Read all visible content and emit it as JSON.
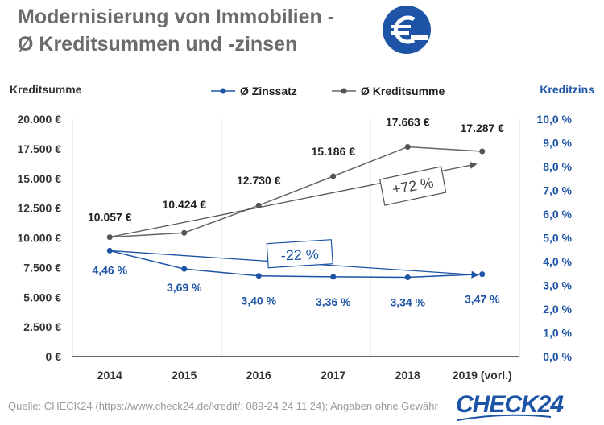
{
  "header": {
    "title_line1": "Modernisierung von Immobilien -",
    "title_line2": "Ø Kreditsummen und -zinsen",
    "logo_icon": "euro-icon",
    "accent_color": "#1d54a5"
  },
  "footer": {
    "source": "Quelle: CHECK24 (https://www.check24.de/kredit/; 089-24 24 11 24); Angaben ohne Gewähr",
    "brand": "CHECK24"
  },
  "chart_data": {
    "type": "line",
    "categories": [
      "2014",
      "2015",
      "2016",
      "2017",
      "2018",
      "2019 (vorl.)"
    ],
    "y_left": {
      "label": "Kreditsumme",
      "range": [
        0,
        20000
      ],
      "ticks": [
        "0 €",
        "2.500 €",
        "5.000 €",
        "7.500 €",
        "10.000 €",
        "12.500 €",
        "15.000 €",
        "17.500 €",
        "20.000 €"
      ]
    },
    "y_right": {
      "label": "Kreditzins",
      "range": [
        0,
        10
      ],
      "ticks": [
        "0,0 %",
        "1,0 %",
        "2,0 %",
        "3,0 %",
        "4,0 %",
        "5,0 %",
        "6,0 %",
        "7,0 %",
        "8,0 %",
        "9,0 %",
        "10,0 %"
      ]
    },
    "series": [
      {
        "name": "Ø Zinssatz",
        "axis": "right",
        "color": "#1d54a5",
        "values": [
          4.46,
          3.69,
          3.4,
          3.36,
          3.34,
          3.47
        ],
        "labels": [
          "4,46 %",
          "3,69 %",
          "3,40 %",
          "3,36 %",
          "3,34 %",
          "3,47 %"
        ]
      },
      {
        "name": "Ø Kreditsumme",
        "axis": "left",
        "color": "#555555",
        "values": [
          10057,
          10424,
          12730,
          15186,
          17663,
          17287
        ],
        "labels": [
          "10.057 €",
          "10.424 €",
          "12.730 €",
          "15.186 €",
          "17.663 €",
          "17.287 €"
        ]
      }
    ],
    "annotations": [
      {
        "text": "+72 %",
        "series": "Ø Kreditsumme"
      },
      {
        "text": "-22 %",
        "series": "Ø Zinssatz"
      }
    ],
    "grid": "vertical"
  }
}
